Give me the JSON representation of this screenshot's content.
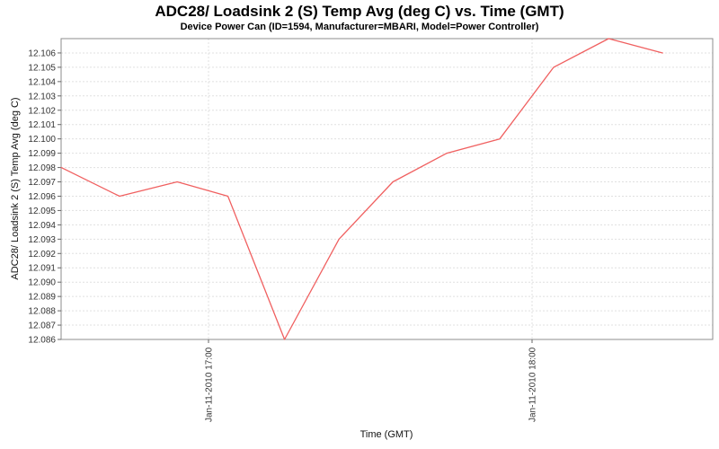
{
  "title": "ADC28/ Loadsink 2 (S) Temp Avg (deg C) vs. Time (GMT)",
  "subtitle": "Device Power Can (ID=1594, Manufacturer=MBARI, Model=Power Controller)",
  "x_axis": {
    "label": "Time (GMT)",
    "ticks": [
      {
        "label": "Jan-11-2010 17:00",
        "minutes_from_1700": 0
      },
      {
        "label": "Jan-11-2010 18:00",
        "minutes_from_1700": 60
      }
    ]
  },
  "y_axis": {
    "label": "ADC28/ Loadsink 2 (S) Temp Avg (deg C)",
    "tick_labels": [
      "12.086",
      "12.087",
      "12.088",
      "12.089",
      "12.090",
      "12.091",
      "12.092",
      "12.093",
      "12.094",
      "12.095",
      "12.096",
      "12.097",
      "12.098",
      "12.099",
      "12.100",
      "12.101",
      "12.102",
      "12.103",
      "12.104",
      "12.105",
      "12.106"
    ]
  },
  "colors": {
    "line": "#f06060",
    "grid": "#e0e0e0",
    "plot_border": "#8c8c8c",
    "tick_mark": "#666666",
    "text": "#000000"
  },
  "chart_data": {
    "type": "line",
    "title": "ADC28/ Loadsink 2 (S) Temp Avg (deg C) vs. Time (GMT)",
    "subtitle": "Device Power Can (ID=1594, Manufacturer=MBARI, Model=Power Controller)",
    "xlabel": "Time (GMT)",
    "ylabel": "ADC28/ Loadsink 2 (S) Temp Avg (deg C)",
    "x_tick_labels": [
      "Jan-11-2010 17:00",
      "Jan-11-2010 18:00"
    ],
    "ylim": [
      12.086,
      12.107
    ],
    "y_tick_step": 0.001,
    "grid": "dashed",
    "legend": "none",
    "series": [
      {
        "name": "ADC28/ Loadsink 2 (S) Temp Avg (deg C)",
        "x_minutes_from_1700": [
          -27.3,
          -16.5,
          -5.8,
          3.6,
          14.1,
          24.2,
          34.2,
          44.2,
          54,
          64,
          74.2,
          84.2
        ],
        "approx_times_gmt": [
          "16:33",
          "16:44",
          "16:54",
          "17:04",
          "17:14",
          "17:24",
          "17:34",
          "17:44",
          "17:54",
          "18:04",
          "18:14",
          "18:24"
        ],
        "values": [
          12.098,
          12.096,
          12.097,
          12.096,
          12.086,
          12.093,
          12.097,
          12.099,
          12.1,
          12.105,
          12.107,
          12.106
        ]
      }
    ]
  }
}
